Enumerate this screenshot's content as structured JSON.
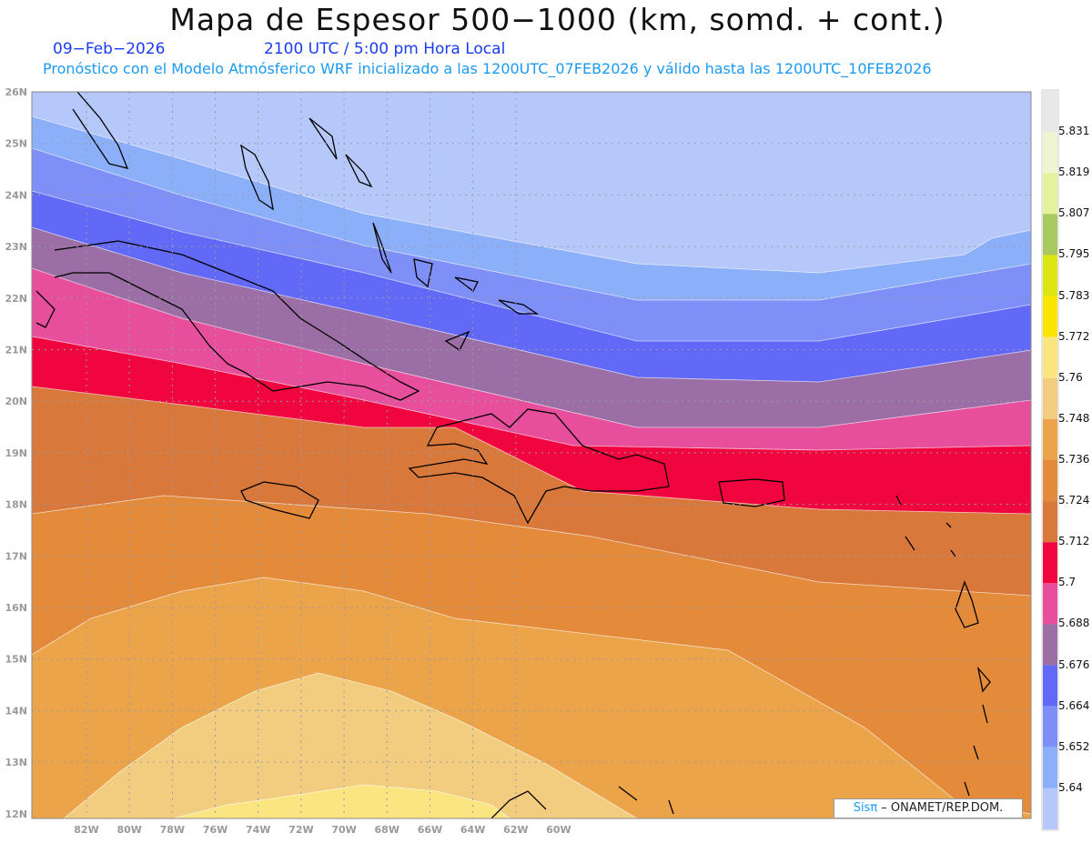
{
  "title": "Mapa de Espesor 500−1000 (km, somd. + cont.)",
  "date": "09−Feb−2026",
  "time": "2100 UTC / 5:00 pm Hora Local",
  "subtitle": "Pronóstico con el Modelo Atmósferico WRF inicializado a las 1200UTC_07FEB2026 y válido hasta las  1200UTC_10FEB2026",
  "lat_labels": [
    "26N",
    "25N",
    "24N",
    "23N",
    "22N",
    "21N",
    "20N",
    "19N",
    "18N",
    "17N",
    "16N",
    "15N",
    "14N",
    "13N",
    "12N"
  ],
  "lon_labels": [
    "82W",
    "80W",
    "78W",
    "76W",
    "74W",
    "72W",
    "70W",
    "68W",
    "66W",
    "64W",
    "62W",
    "60W"
  ],
  "colorbar": {
    "labels": [
      "5.831",
      "5.819",
      "5.807",
      "5.795",
      "5.783",
      "5.772",
      "5.76",
      "5.748",
      "5.736",
      "5.724",
      "5.712",
      "5.7",
      "5.688",
      "5.676",
      "5.664",
      "5.652",
      "5.64"
    ],
    "colors": [
      "#e8e8e8",
      "#eff5d2",
      "#e4f29c",
      "#a8c860",
      "#dde615",
      "#fae600",
      "#fae580",
      "#f2cd7f",
      "#eba449",
      "#e38b3b",
      "#d9783b",
      "#f0053f",
      "#e74f9c",
      "#9b6ea5",
      "#6169f6",
      "#7e8ff8",
      "#8caffa",
      "#b6c8fa"
    ]
  },
  "credit": {
    "brand": "Sisπ",
    "text": " –  ONAMET/REP.DOM."
  }
}
